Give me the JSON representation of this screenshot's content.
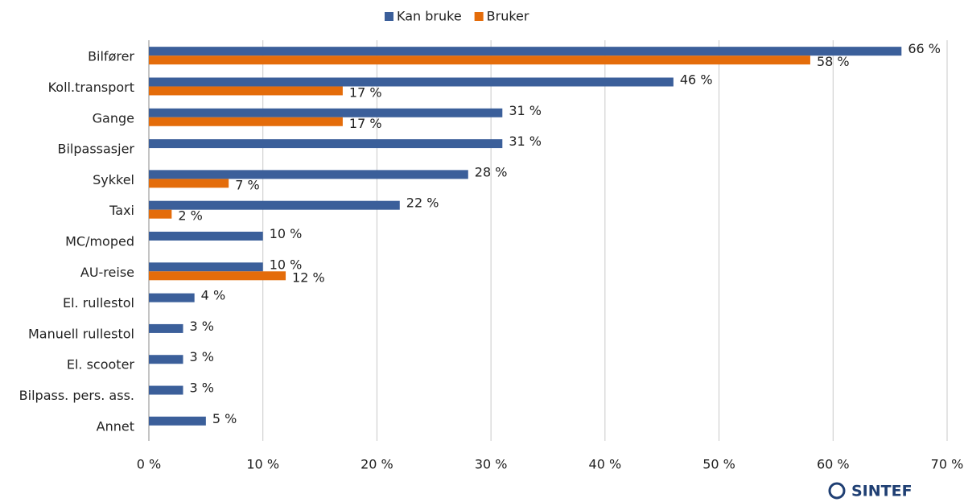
{
  "chart_data": {
    "type": "bar",
    "orientation": "horizontal",
    "categories": [
      "Bilfører",
      "Koll.transport",
      "Gange",
      "Bilpassasjer",
      "Sykkel",
      "Taxi",
      "MC/moped",
      "AU-reise",
      "El. rullestol",
      "Manuell rullestol",
      "El. scooter",
      "Bilpass. pers. ass.",
      "Annet"
    ],
    "series": [
      {
        "name": "Kan bruke",
        "color": "#3b5f9a",
        "values": [
          66,
          46,
          31,
          31,
          28,
          22,
          10,
          10,
          4,
          3,
          3,
          3,
          5
        ],
        "value_labels": [
          "66 %",
          "46 %",
          "31 %",
          "31 %",
          "28 %",
          "22 %",
          "10 %",
          "10 %",
          "4 %",
          "3 %",
          "3 %",
          "3 %",
          "5 %"
        ]
      },
      {
        "name": "Bruker",
        "color": "#e46c0a",
        "values": [
          58,
          17,
          17,
          null,
          7,
          2,
          null,
          12,
          null,
          null,
          null,
          null,
          null
        ],
        "value_labels": [
          "58 %",
          "17 %",
          "17 %",
          null,
          "7 %",
          "2 %",
          null,
          "12 %",
          null,
          null,
          null,
          null,
          null
        ]
      }
    ],
    "xlim": [
      0,
      70
    ],
    "xticks": [
      {
        "value": 0,
        "label": "0 %"
      },
      {
        "value": 10,
        "label": "10 %"
      },
      {
        "value": 20,
        "label": "20 %"
      },
      {
        "value": 30,
        "label": "30 %"
      },
      {
        "value": 40,
        "label": "40 %"
      },
      {
        "value": 50,
        "label": "50 %"
      },
      {
        "value": 60,
        "label": "60 %"
      },
      {
        "value": 70,
        "label": "70 %"
      }
    ],
    "grid": true,
    "legend": "top"
  },
  "logo": "SINTEF"
}
